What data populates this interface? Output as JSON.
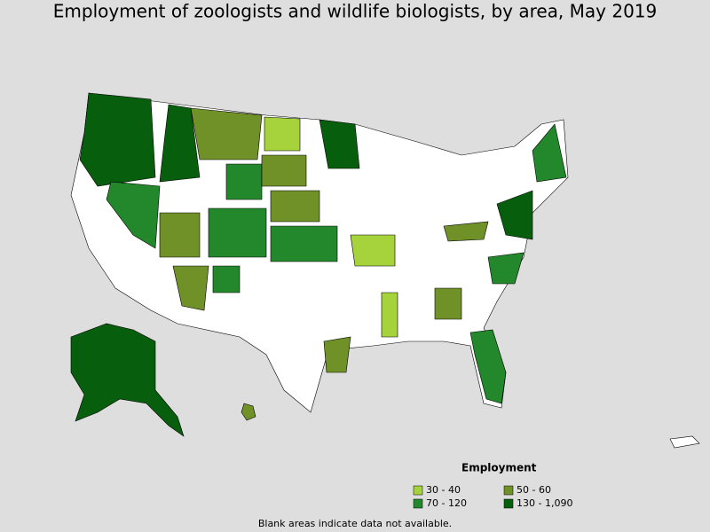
{
  "title": "Employment of zoologists and wildlife biologists, by area, May 2019",
  "legend": {
    "title": "Employment",
    "items": [
      {
        "label": "30 - 40",
        "color": "#a6d23c"
      },
      {
        "label": "50 - 60",
        "color": "#6f9128"
      },
      {
        "label": "70 - 120",
        "color": "#23882b"
      },
      {
        "label": "130 - 1,090",
        "color": "#075f0d"
      }
    ]
  },
  "footnote": "Blank areas indicate data not available."
}
